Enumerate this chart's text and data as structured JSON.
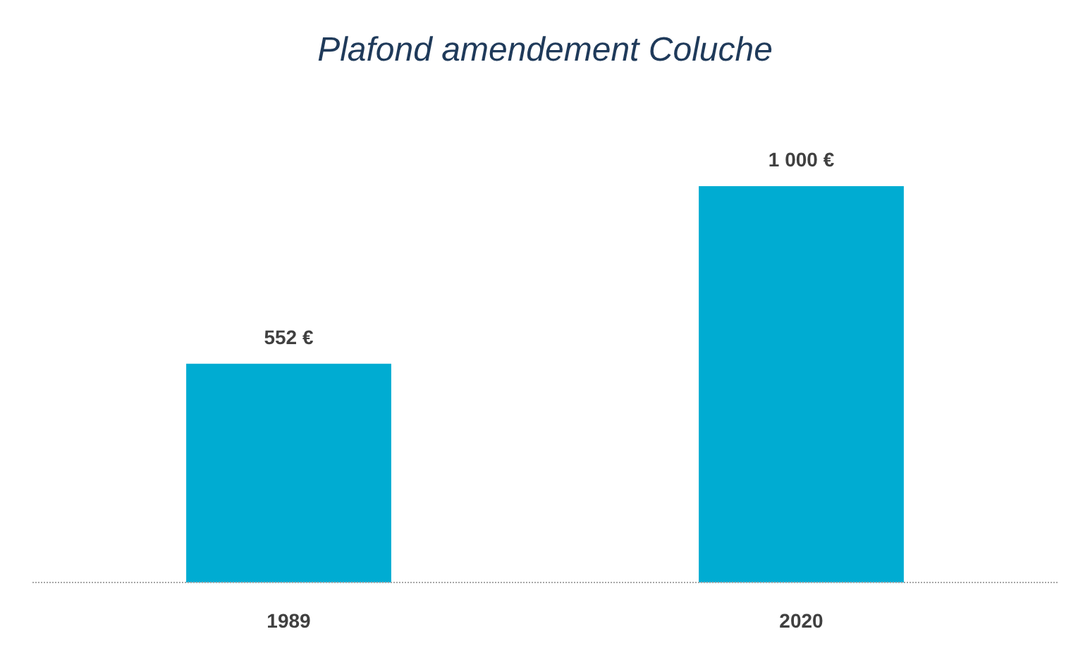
{
  "chart_data": {
    "type": "bar",
    "title": "Plafond amendement Coluche",
    "categories": [
      "1989",
      "2020"
    ],
    "values": [
      552,
      1000
    ],
    "color": "#00acd2",
    "value_labels": [
      "552 €",
      "1 000 €"
    ]
  }
}
